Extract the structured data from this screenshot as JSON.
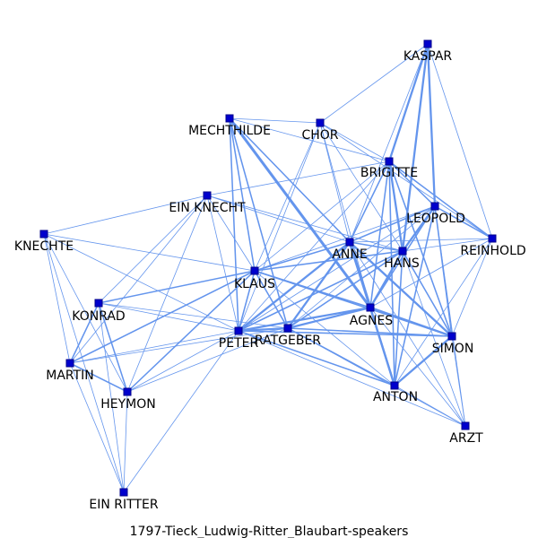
{
  "caption": "1797-Tieck_Ludwig-Ritter_Blaubart-speakers",
  "colors": {
    "edge": "#6495ed",
    "node_fill": "#0000cd",
    "node_stroke": "#00008b",
    "text": "#000000"
  },
  "nodes": [
    {
      "id": "KASPAR",
      "label": "KASPAR"
    },
    {
      "id": "CHOR",
      "label": "CHOR"
    },
    {
      "id": "MECHTHILDE",
      "label": "MECHTHILDE"
    },
    {
      "id": "BRIGITTE",
      "label": "BRIGITTE"
    },
    {
      "id": "EIN_KNECHT",
      "label": "EIN KNECHT"
    },
    {
      "id": "LEOPOLD",
      "label": "LEOPOLD"
    },
    {
      "id": "REINHOLD",
      "label": "REINHOLD"
    },
    {
      "id": "KNECHTE",
      "label": "KNECHTE"
    },
    {
      "id": "ANNE",
      "label": "ANNE"
    },
    {
      "id": "HANS",
      "label": "HANS"
    },
    {
      "id": "KLAUS",
      "label": "KLAUS"
    },
    {
      "id": "KONRAD",
      "label": "KONRAD"
    },
    {
      "id": "AGNES",
      "label": "AGNES"
    },
    {
      "id": "PETER",
      "label": "PETER"
    },
    {
      "id": "RATGEBER",
      "label": "RATGEBER"
    },
    {
      "id": "SIMON",
      "label": "SIMON"
    },
    {
      "id": "MARTIN",
      "label": "MARTIN"
    },
    {
      "id": "HEYMON",
      "label": "HEYMON"
    },
    {
      "id": "ANTON",
      "label": "ANTON"
    },
    {
      "id": "ARZT",
      "label": "ARZT"
    },
    {
      "id": "EIN_RITTER",
      "label": "EIN RITTER"
    }
  ],
  "edges": [
    {
      "s": "KASPAR",
      "t": "CHOR",
      "w": 1
    },
    {
      "s": "KASPAR",
      "t": "BRIGITTE",
      "w": 3
    },
    {
      "s": "KASPAR",
      "t": "LEOPOLD",
      "w": 3
    },
    {
      "s": "KASPAR",
      "t": "HANS",
      "w": 3
    },
    {
      "s": "KASPAR",
      "t": "REINHOLD",
      "w": 1
    },
    {
      "s": "KASPAR",
      "t": "ANNE",
      "w": 1
    },
    {
      "s": "MECHTHILDE",
      "t": "CHOR",
      "w": 1
    },
    {
      "s": "MECHTHILDE",
      "t": "BRIGITTE",
      "w": 1
    },
    {
      "s": "MECHTHILDE",
      "t": "AGNES",
      "w": 4
    },
    {
      "s": "MECHTHILDE",
      "t": "ANNE",
      "w": 2
    },
    {
      "s": "MECHTHILDE",
      "t": "KLAUS",
      "w": 2
    },
    {
      "s": "MECHTHILDE",
      "t": "PETER",
      "w": 2
    },
    {
      "s": "MECHTHILDE",
      "t": "RATGEBER",
      "w": 2
    },
    {
      "s": "CHOR",
      "t": "BRIGITTE",
      "w": 1
    },
    {
      "s": "CHOR",
      "t": "AGNES",
      "w": 1
    },
    {
      "s": "CHOR",
      "t": "HANS",
      "w": 1
    },
    {
      "s": "CHOR",
      "t": "KLAUS",
      "w": 1
    },
    {
      "s": "CHOR",
      "t": "PETER",
      "w": 1
    },
    {
      "s": "CHOR",
      "t": "ANNE",
      "w": 1
    },
    {
      "s": "CHOR",
      "t": "REINHOLD",
      "w": 1
    },
    {
      "s": "BRIGITTE",
      "t": "LEOPOLD",
      "w": 2
    },
    {
      "s": "BRIGITTE",
      "t": "HANS",
      "w": 3
    },
    {
      "s": "BRIGITTE",
      "t": "REINHOLD",
      "w": 2
    },
    {
      "s": "BRIGITTE",
      "t": "ANNE",
      "w": 2
    },
    {
      "s": "BRIGITTE",
      "t": "AGNES",
      "w": 2
    },
    {
      "s": "BRIGITTE",
      "t": "SIMON",
      "w": 2
    },
    {
      "s": "BRIGITTE",
      "t": "EIN_KNECHT",
      "w": 1
    },
    {
      "s": "BRIGITTE",
      "t": "KLAUS",
      "w": 1
    },
    {
      "s": "BRIGITTE",
      "t": "PETER",
      "w": 1
    },
    {
      "s": "BRIGITTE",
      "t": "ANTON",
      "w": 2
    },
    {
      "s": "LEOPOLD",
      "t": "HANS",
      "w": 3
    },
    {
      "s": "LEOPOLD",
      "t": "ANNE",
      "w": 2
    },
    {
      "s": "LEOPOLD",
      "t": "REINHOLD",
      "w": 2
    },
    {
      "s": "LEOPOLD",
      "t": "AGNES",
      "w": 2
    },
    {
      "s": "LEOPOLD",
      "t": "SIMON",
      "w": 2
    },
    {
      "s": "LEOPOLD",
      "t": "ANTON",
      "w": 2
    },
    {
      "s": "LEOPOLD",
      "t": "KLAUS",
      "w": 1
    },
    {
      "s": "LEOPOLD",
      "t": "RATGEBER",
      "w": 1
    },
    {
      "s": "LEOPOLD",
      "t": "PETER",
      "w": 1
    },
    {
      "s": "LEOPOLD",
      "t": "ARZT",
      "w": 1
    },
    {
      "s": "REINHOLD",
      "t": "HANS",
      "w": 1
    },
    {
      "s": "REINHOLD",
      "t": "ANNE",
      "w": 1
    },
    {
      "s": "REINHOLD",
      "t": "SIMON",
      "w": 1
    },
    {
      "s": "REINHOLD",
      "t": "AGNES",
      "w": 1
    },
    {
      "s": "REINHOLD",
      "t": "ANTON",
      "w": 1
    },
    {
      "s": "EIN_KNECHT",
      "t": "KNECHTE",
      "w": 1
    },
    {
      "s": "EIN_KNECHT",
      "t": "KLAUS",
      "w": 1
    },
    {
      "s": "EIN_KNECHT",
      "t": "KONRAD",
      "w": 1
    },
    {
      "s": "EIN_KNECHT",
      "t": "MARTIN",
      "w": 1
    },
    {
      "s": "EIN_KNECHT",
      "t": "HEYMON",
      "w": 1
    },
    {
      "s": "EIN_KNECHT",
      "t": "PETER",
      "w": 1
    },
    {
      "s": "EIN_KNECHT",
      "t": "ANNE",
      "w": 1
    },
    {
      "s": "EIN_KNECHT",
      "t": "HANS",
      "w": 1
    },
    {
      "s": "KNECHTE",
      "t": "KLAUS",
      "w": 1
    },
    {
      "s": "KNECHTE",
      "t": "MARTIN",
      "w": 1
    },
    {
      "s": "KNECHTE",
      "t": "HEYMON",
      "w": 1
    },
    {
      "s": "KNECHTE",
      "t": "EIN_RITTER",
      "w": 1
    },
    {
      "s": "KNECHTE",
      "t": "PETER",
      "w": 1
    },
    {
      "s": "ANNE",
      "t": "HANS",
      "w": 2
    },
    {
      "s": "ANNE",
      "t": "AGNES",
      "w": 4
    },
    {
      "s": "ANNE",
      "t": "KLAUS",
      "w": 2
    },
    {
      "s": "ANNE",
      "t": "PETER",
      "w": 3
    },
    {
      "s": "ANNE",
      "t": "RATGEBER",
      "w": 3
    },
    {
      "s": "ANNE",
      "t": "SIMON",
      "w": 3
    },
    {
      "s": "ANNE",
      "t": "ANTON",
      "w": 3
    },
    {
      "s": "ANNE",
      "t": "ARZT",
      "w": 1
    },
    {
      "s": "HANS",
      "t": "AGNES",
      "w": 3
    },
    {
      "s": "HANS",
      "t": "KLAUS",
      "w": 2
    },
    {
      "s": "HANS",
      "t": "PETER",
      "w": 2
    },
    {
      "s": "HANS",
      "t": "RATGEBER",
      "w": 2
    },
    {
      "s": "HANS",
      "t": "SIMON",
      "w": 2
    },
    {
      "s": "HANS",
      "t": "ANTON",
      "w": 2
    },
    {
      "s": "HANS",
      "t": "ARZT",
      "w": 1
    },
    {
      "s": "KLAUS",
      "t": "AGNES",
      "w": 2
    },
    {
      "s": "KLAUS",
      "t": "PETER",
      "w": 2
    },
    {
      "s": "KLAUS",
      "t": "RATGEBER",
      "w": 2
    },
    {
      "s": "KLAUS",
      "t": "SIMON",
      "w": 2
    },
    {
      "s": "KLAUS",
      "t": "KONRAD",
      "w": 2
    },
    {
      "s": "KLAUS",
      "t": "MARTIN",
      "w": 2
    },
    {
      "s": "KLAUS",
      "t": "HEYMON",
      "w": 2
    },
    {
      "s": "KLAUS",
      "t": "ANTON",
      "w": 1
    },
    {
      "s": "KONRAD",
      "t": "PETER",
      "w": 1
    },
    {
      "s": "KONRAD",
      "t": "RATGEBER",
      "w": 1
    },
    {
      "s": "KONRAD",
      "t": "MARTIN",
      "w": 2
    },
    {
      "s": "KONRAD",
      "t": "HEYMON",
      "w": 2
    },
    {
      "s": "KONRAD",
      "t": "EIN_RITTER",
      "w": 1
    },
    {
      "s": "MARTIN",
      "t": "HEYMON",
      "w": 2
    },
    {
      "s": "MARTIN",
      "t": "PETER",
      "w": 1
    },
    {
      "s": "MARTIN",
      "t": "EIN_RITTER",
      "w": 1
    },
    {
      "s": "MARTIN",
      "t": "RATGEBER",
      "w": 1
    },
    {
      "s": "HEYMON",
      "t": "PETER",
      "w": 1
    },
    {
      "s": "HEYMON",
      "t": "EIN_RITTER",
      "w": 1
    },
    {
      "s": "HEYMON",
      "t": "RATGEBER",
      "w": 1
    },
    {
      "s": "EIN_RITTER",
      "t": "PETER",
      "w": 1
    },
    {
      "s": "PETER",
      "t": "RATGEBER",
      "w": 3
    },
    {
      "s": "PETER",
      "t": "AGNES",
      "w": 3
    },
    {
      "s": "PETER",
      "t": "SIMON",
      "w": 2
    },
    {
      "s": "PETER",
      "t": "ANTON",
      "w": 2
    },
    {
      "s": "PETER",
      "t": "ARZT",
      "w": 1
    },
    {
      "s": "RATGEBER",
      "t": "AGNES",
      "w": 3
    },
    {
      "s": "RATGEBER",
      "t": "SIMON",
      "w": 2
    },
    {
      "s": "RATGEBER",
      "t": "ANTON",
      "w": 2
    },
    {
      "s": "RATGEBER",
      "t": "ARZT",
      "w": 1
    },
    {
      "s": "AGNES",
      "t": "SIMON",
      "w": 3
    },
    {
      "s": "AGNES",
      "t": "ANTON",
      "w": 3
    },
    {
      "s": "AGNES",
      "t": "ARZT",
      "w": 1
    },
    {
      "s": "SIMON",
      "t": "ANTON",
      "w": 3
    },
    {
      "s": "SIMON",
      "t": "ARZT",
      "w": 1
    },
    {
      "s": "ANTON",
      "t": "ARZT",
      "w": 1
    }
  ]
}
